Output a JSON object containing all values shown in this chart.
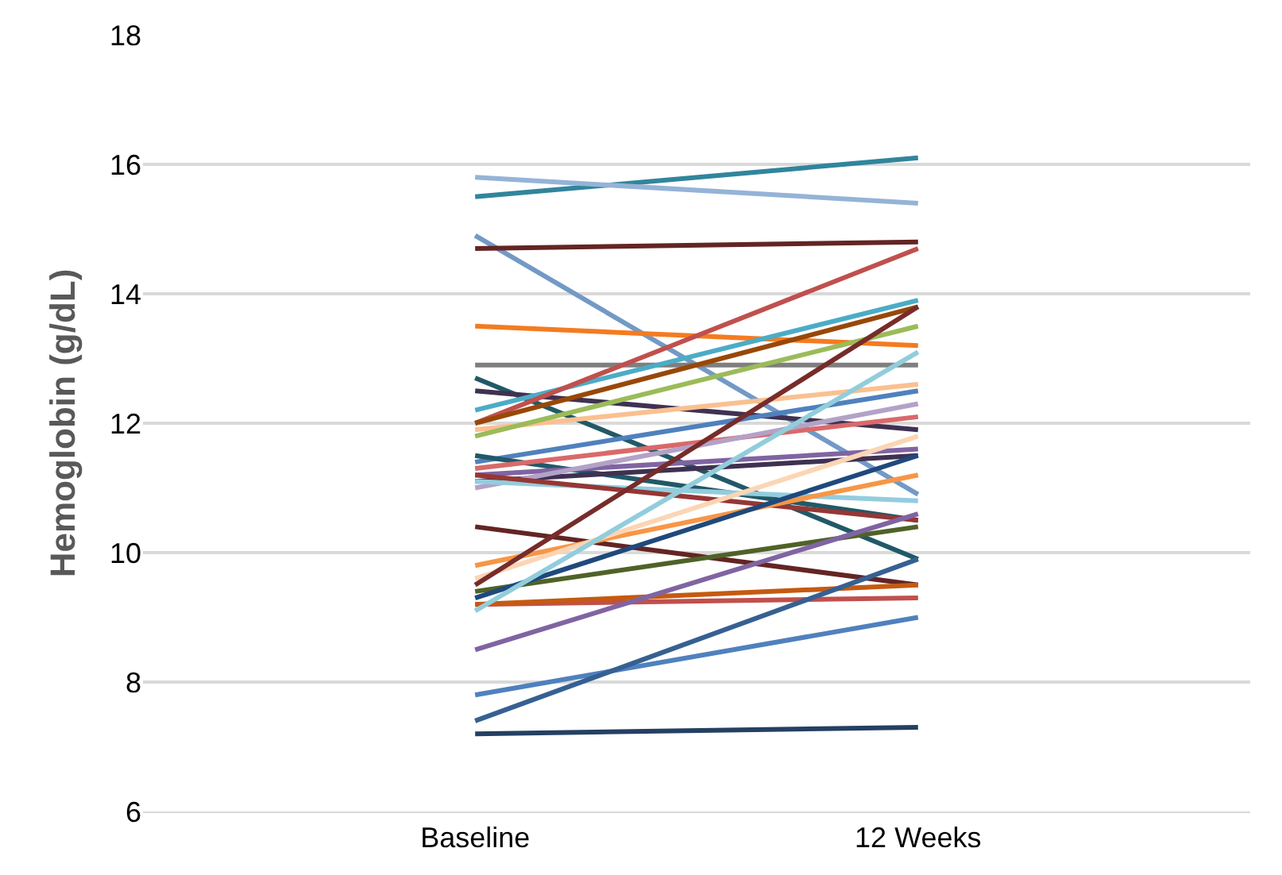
{
  "chart_data": {
    "type": "line",
    "ylabel": "Hemoglobin (g/dL)",
    "categories": [
      "Baseline",
      "12 Weeks"
    ],
    "ylim": [
      6,
      18
    ],
    "yticks": [
      6,
      8,
      10,
      12,
      14,
      16,
      18
    ],
    "grid": "y",
    "marker": "none",
    "line_style": "solid",
    "series": [
      {
        "color": "#31859c",
        "values": [
          15.5,
          16.1
        ]
      },
      {
        "color": "#95b3d7",
        "values": [
          15.8,
          15.4
        ]
      },
      {
        "color": "#7399c6",
        "values": [
          14.9,
          10.9
        ]
      },
      {
        "color": "#632523",
        "values": [
          14.7,
          14.8
        ]
      },
      {
        "color": "#f47b20",
        "values": [
          13.5,
          13.2
        ]
      },
      {
        "color": "#7f7f7f",
        "values": [
          12.9,
          12.9
        ]
      },
      {
        "color": "#215967",
        "values": [
          12.7,
          9.9
        ]
      },
      {
        "color": "#403151",
        "values": [
          12.5,
          11.9
        ]
      },
      {
        "color": "#4bacc6",
        "values": [
          12.2,
          13.9
        ]
      },
      {
        "color": "#c0504d",
        "values": [
          12.0,
          14.7
        ]
      },
      {
        "color": "#984807",
        "values": [
          12.0,
          13.8
        ]
      },
      {
        "color": "#fac090",
        "values": [
          11.9,
          12.6
        ]
      },
      {
        "color": "#9bbb59",
        "values": [
          11.8,
          13.5
        ]
      },
      {
        "color": "#4f81bd",
        "values": [
          11.4,
          12.5
        ]
      },
      {
        "color": "#215967",
        "values": [
          11.5,
          10.5
        ]
      },
      {
        "color": "#d9696a",
        "values": [
          11.3,
          12.1
        ]
      },
      {
        "color": "#8064a2",
        "values": [
          11.2,
          11.6
        ]
      },
      {
        "color": "#3f3151",
        "values": [
          11.1,
          11.5
        ]
      },
      {
        "color": "#b3a2c7",
        "values": [
          11.0,
          12.3
        ]
      },
      {
        "color": "#93cddd",
        "values": [
          11.1,
          10.8
        ]
      },
      {
        "color": "#953735",
        "values": [
          11.2,
          10.5
        ]
      },
      {
        "color": "#632523",
        "values": [
          10.4,
          9.5
        ]
      },
      {
        "color": "#f79646",
        "values": [
          9.8,
          11.2
        ]
      },
      {
        "color": "#fcd5b4",
        "values": [
          9.6,
          11.8
        ]
      },
      {
        "color": "#772c2a",
        "values": [
          9.5,
          13.8
        ]
      },
      {
        "color": "#4f6228",
        "values": [
          9.4,
          10.4
        ]
      },
      {
        "color": "#1f497d",
        "values": [
          9.3,
          11.5
        ]
      },
      {
        "color": "#c0504d",
        "values": [
          9.2,
          9.3
        ]
      },
      {
        "color": "#c55a11",
        "values": [
          9.2,
          9.5
        ]
      },
      {
        "color": "#92cddc",
        "values": [
          9.1,
          13.1
        ]
      },
      {
        "color": "#8064a2",
        "values": [
          8.5,
          10.6
        ]
      },
      {
        "color": "#4f81bd",
        "values": [
          7.8,
          9.0
        ]
      },
      {
        "color": "#366092",
        "values": [
          7.4,
          9.9
        ]
      },
      {
        "color": "#244062",
        "values": [
          7.2,
          7.3
        ]
      }
    ]
  }
}
